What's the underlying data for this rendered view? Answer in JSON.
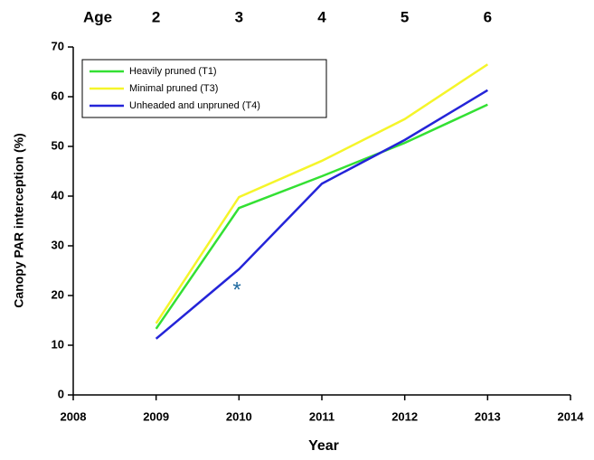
{
  "chart_data": {
    "type": "line",
    "x_label": "Year",
    "y_label": "Canopy PAR interception (%)",
    "age_title": "Age",
    "age_labels": [
      "2",
      "3",
      "4",
      "5",
      "6"
    ],
    "annotations": [
      "*"
    ],
    "x": [
      2009,
      2010,
      2011,
      2012,
      2013
    ],
    "series": [
      {
        "name": "Heavily pruned (T1)",
        "color": "#33e033",
        "values": [
          13.3,
          37.6,
          44.0,
          50.7,
          58.4
        ]
      },
      {
        "name": "Minimal pruned (T3)",
        "color": "#f5f52a",
        "values": [
          14.4,
          39.8,
          47.1,
          55.5,
          66.5
        ]
      },
      {
        "name": "Unheaded and unpruned (T4)",
        "color": "#2424d8",
        "values": [
          11.3,
          25.3,
          42.5,
          51.3,
          61.3
        ]
      }
    ],
    "xlim": [
      2008,
      2014
    ],
    "xticks": [
      2008,
      2009,
      2010,
      2011,
      2012,
      2013,
      2014
    ],
    "ylim": [
      0,
      70
    ],
    "yticks": [
      0,
      10,
      20,
      30,
      40,
      50,
      60,
      70
    ],
    "grid": false,
    "legend": "upper-left"
  }
}
